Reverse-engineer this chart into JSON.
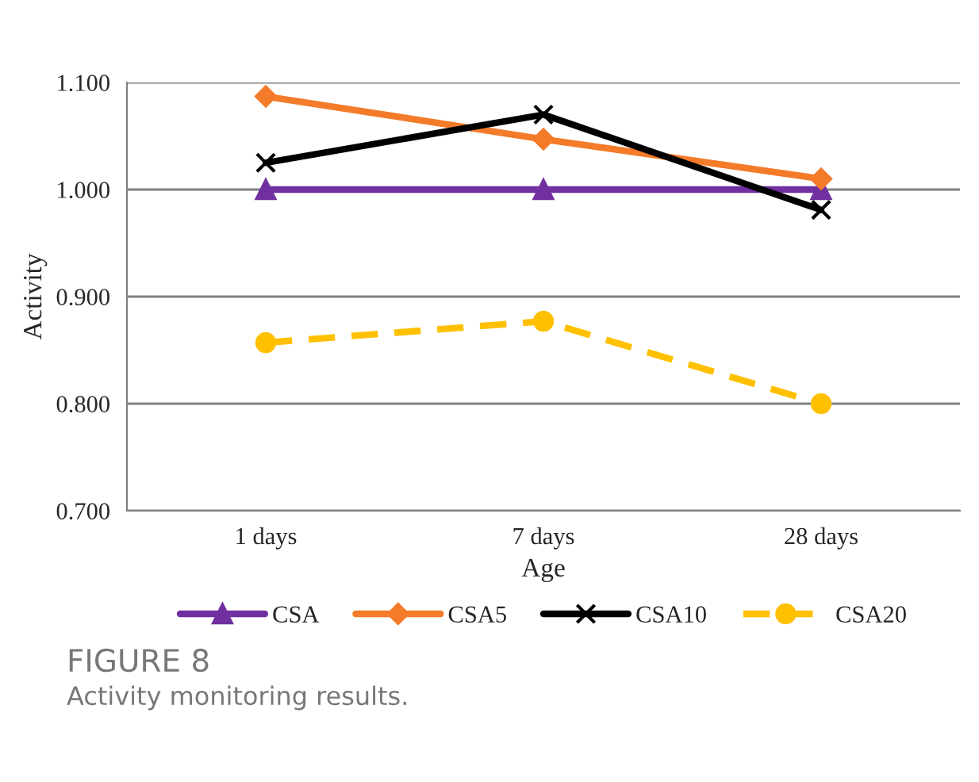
{
  "chart_data": {
    "type": "line",
    "xlabel": "Age",
    "ylabel": "Activity",
    "categories": [
      "1 days",
      "7 days",
      "28 days"
    ],
    "series": [
      {
        "name": "CSA",
        "color": "#7030a0",
        "values": [
          1.0,
          1.0,
          1.0
        ],
        "marker": "triangle",
        "line_style": "solid"
      },
      {
        "name": "CSA5",
        "color": "#f47b2a",
        "values": [
          1.087,
          1.047,
          1.01
        ],
        "marker": "diamond",
        "line_style": "solid"
      },
      {
        "name": "CSA10",
        "color": "#000000",
        "values": [
          1.025,
          1.07,
          0.981
        ],
        "marker": "cross",
        "line_style": "solid"
      },
      {
        "name": "CSA20",
        "color": "#ffc000",
        "values": [
          0.857,
          0.877,
          0.8
        ],
        "marker": "circle",
        "line_style": "dashed"
      }
    ],
    "ylim": [
      0.7,
      1.1
    ],
    "yticks": [
      {
        "value": 0.7,
        "label": "0.700"
      },
      {
        "value": 0.8,
        "label": "0.800"
      },
      {
        "value": 0.9,
        "label": "0.900"
      },
      {
        "value": 1.0,
        "label": "1.000"
      },
      {
        "value": 1.1,
        "label": "1.100"
      }
    ],
    "grid": "y",
    "legend": "bottom",
    "annotations": [
      "FIGURE 8",
      "Activity monitoring results."
    ]
  }
}
